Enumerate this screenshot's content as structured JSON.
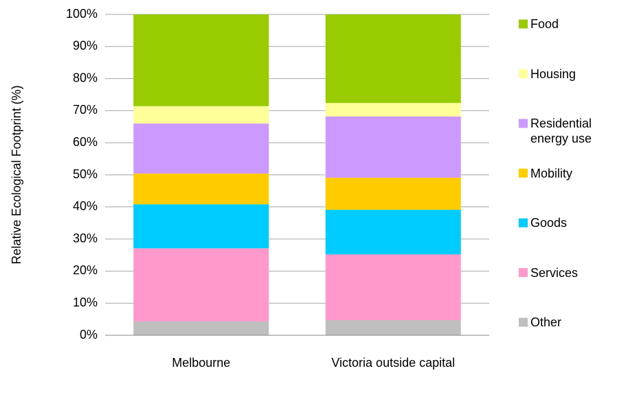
{
  "chart_data": {
    "type": "stacked_bar",
    "ylabel": "Relative Ecological Footprint (%)",
    "categories": [
      "Melbourne",
      "Victoria outside capital"
    ],
    "series": [
      {
        "name": "Other",
        "color": "#bfbfbf",
        "values": [
          4.3,
          4.7
        ]
      },
      {
        "name": "Services",
        "color": "#ff99cc",
        "values": [
          22.8,
          20.5
        ]
      },
      {
        "name": "Goods",
        "color": "#00ccff",
        "values": [
          13.7,
          13.9
        ]
      },
      {
        "name": "Mobility",
        "color": "#ffcc00",
        "values": [
          9.6,
          10.0
        ]
      },
      {
        "name": "Residential energy use",
        "color": "#cc99ff",
        "values": [
          15.6,
          19.1
        ]
      },
      {
        "name": "Housing",
        "color": "#ffff99",
        "values": [
          5.4,
          4.2
        ]
      },
      {
        "name": "Food",
        "color": "#99cc00",
        "values": [
          28.6,
          27.6
        ]
      }
    ],
    "ylim": [
      0,
      100
    ],
    "yticks": [
      {
        "value": 0,
        "label": "0%"
      },
      {
        "value": 10,
        "label": "10%"
      },
      {
        "value": 20,
        "label": "20%"
      },
      {
        "value": 30,
        "label": "30%"
      },
      {
        "value": 40,
        "label": "40%"
      },
      {
        "value": 50,
        "label": "50%"
      },
      {
        "value": 60,
        "label": "60%"
      },
      {
        "value": 70,
        "label": "70%"
      },
      {
        "value": 80,
        "label": "80%"
      },
      {
        "value": 90,
        "label": "90%"
      },
      {
        "value": 100,
        "label": "100%"
      }
    ],
    "grid": true,
    "legend": "right"
  }
}
